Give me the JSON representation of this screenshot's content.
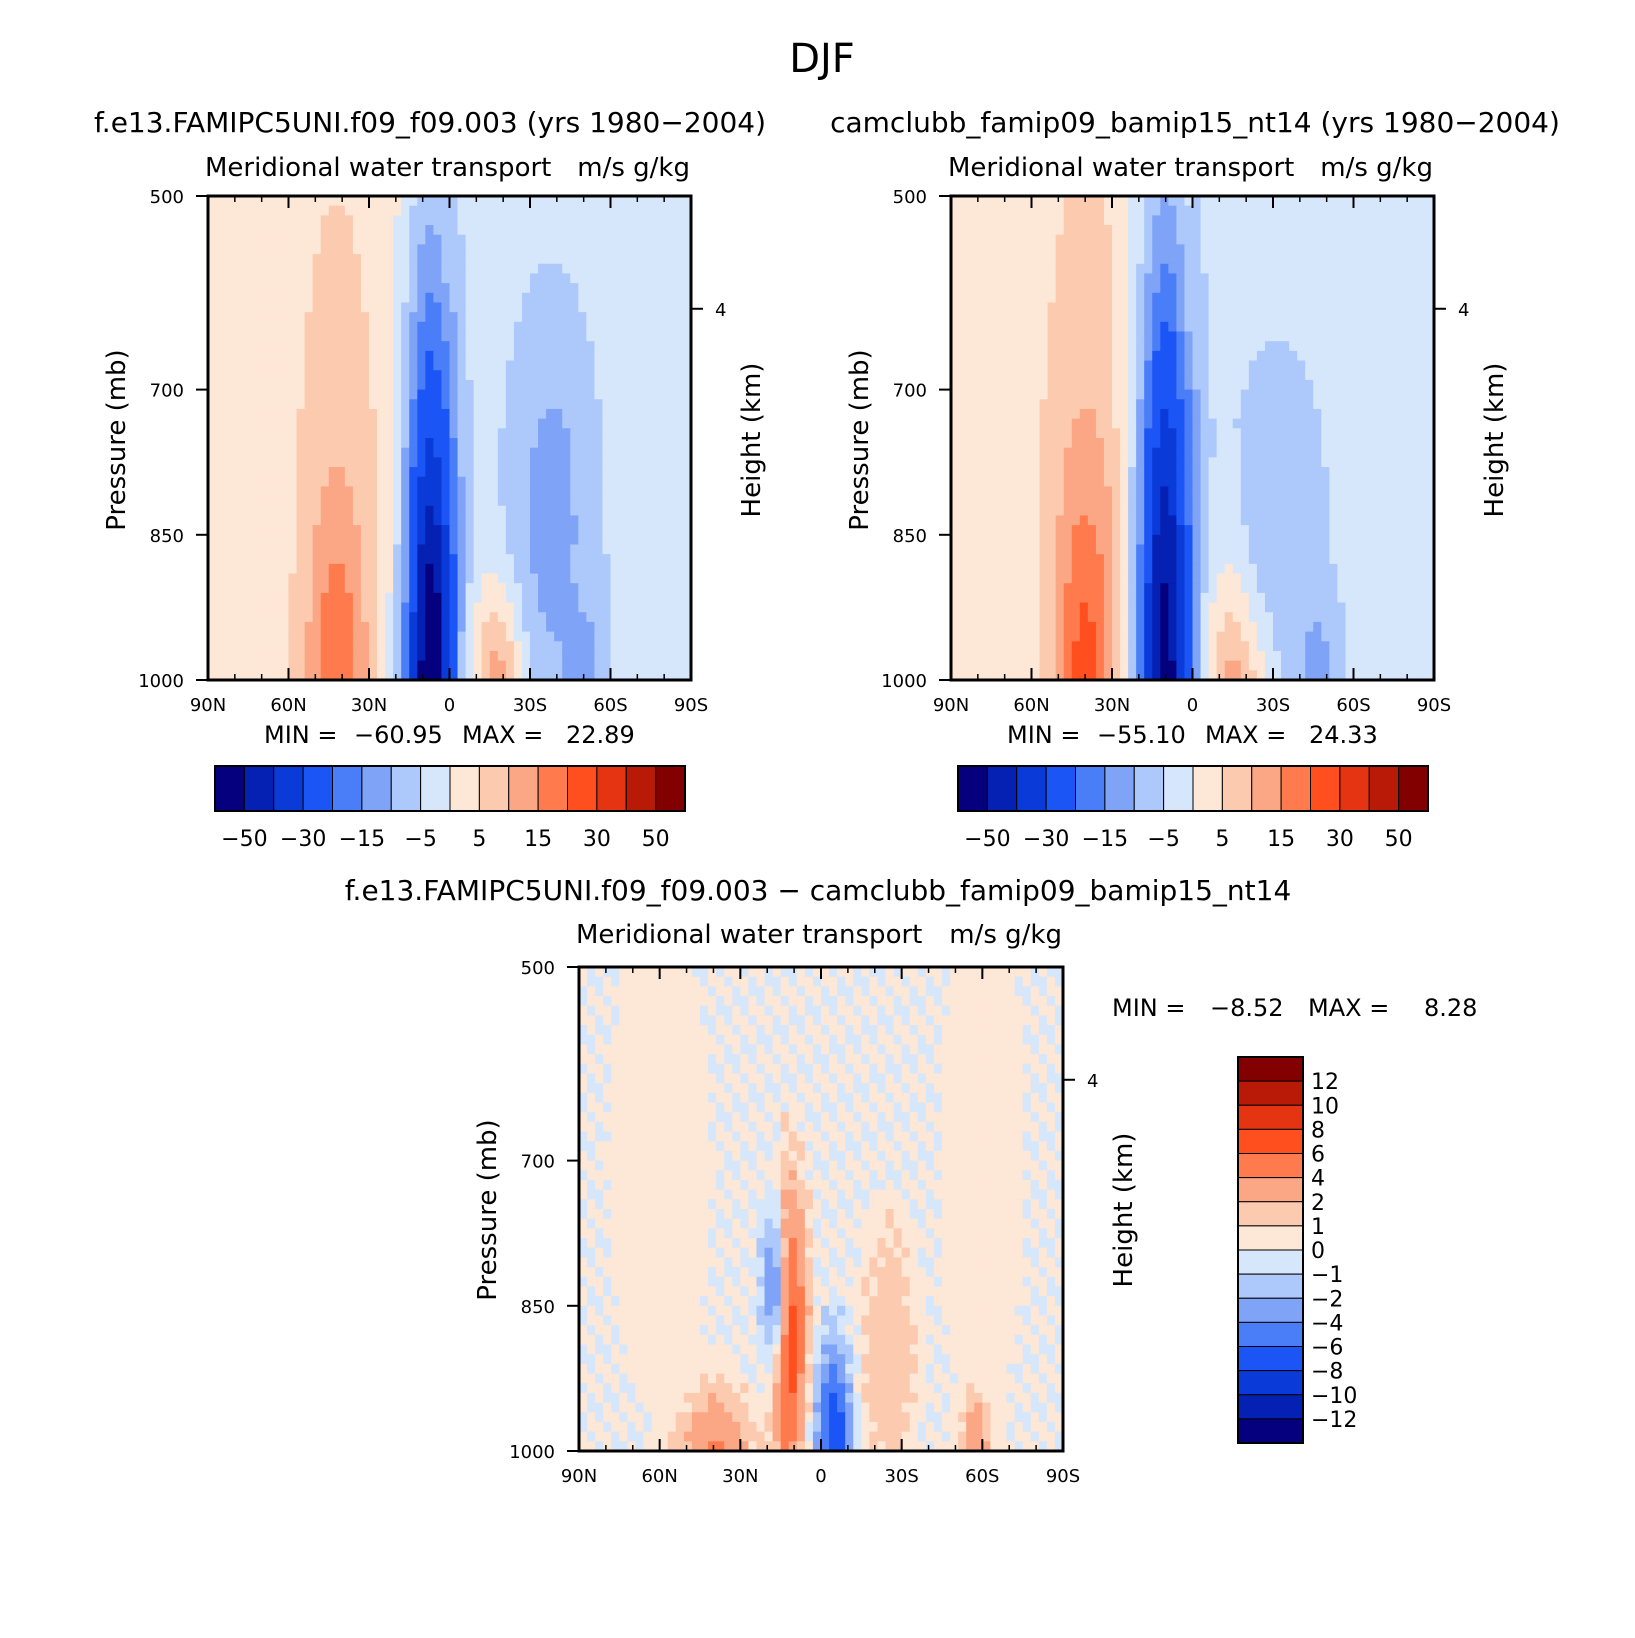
{
  "page": {
    "title": "DJF"
  },
  "colors": {
    "abs_levels": [
      -50,
      -40,
      -30,
      -20,
      -15,
      -10,
      -5,
      0,
      5,
      10,
      15,
      20,
      30,
      40,
      50
    ],
    "abs_palette": [
      "#04007e",
      "#0521b3",
      "#0a3ad8",
      "#1c55f5",
      "#4a7df8",
      "#7fa3f7",
      "#adc8fa",
      "#d6e7fb",
      "#fde7d6",
      "#fccaaf",
      "#fba785",
      "#ff7b4d",
      "#ff4f1f",
      "#e53411",
      "#b91a08",
      "#830000"
    ],
    "diff_levels": [
      -12,
      -10,
      -8,
      -6,
      -4,
      -2,
      -1,
      0,
      1,
      2,
      4,
      6,
      8,
      10,
      12
    ],
    "diff_palette": [
      "#04007e",
      "#0521b3",
      "#0a3ad8",
      "#1c55f5",
      "#4a7df8",
      "#7fa3f7",
      "#adc8fa",
      "#d6e7fb",
      "#fde7d6",
      "#fccaaf",
      "#fba785",
      "#ff7b4d",
      "#ff4f1f",
      "#e53411",
      "#b91a08",
      "#830000"
    ]
  },
  "chart_data": [
    {
      "type": "heatmap",
      "id": "panel-a",
      "title": "f.e13.FAMIPC5UNI.f09_f09.003 (yrs 1980−2004)",
      "subtitle_left": "Meridional water transport",
      "subtitle_right": "m/s g/kg",
      "xlabel": "",
      "ylabel": "Pressure (mb)",
      "ylabel_right": "Height (km)",
      "x_ticks": [
        "90N",
        "60N",
        "30N",
        "0",
        "30S",
        "60S",
        "90S"
      ],
      "x_range": [
        90,
        -90
      ],
      "y_ticks": [
        500,
        700,
        850,
        1000
      ],
      "y_range": [
        500,
        1000
      ],
      "y_right_ticks": [
        "4"
      ],
      "stats": {
        "min_label": "MIN =",
        "min": "−60.95",
        "max_label": "MAX =",
        "max": "22.89"
      },
      "colorbar_labels": [
        "−50",
        "−30",
        "−15",
        "−5",
        "5",
        "15",
        "30",
        "50"
      ],
      "features": [
        {
          "lat": 42,
          "p": 950,
          "wlat": 16,
          "wp": 450,
          "value": 10
        },
        {
          "lat": 42,
          "p": 1000,
          "wlat": 9,
          "wp": 150,
          "value": 20
        },
        {
          "lat": 7,
          "p": 1000,
          "wlat": 10,
          "wp": 420,
          "value": -40
        },
        {
          "lat": 7,
          "p": 1000,
          "wlat": 5,
          "wp": 160,
          "value": -60
        },
        {
          "lat": -20,
          "p": 1000,
          "wlat": 10,
          "wp": 100,
          "value": 18
        },
        {
          "lat": -38,
          "p": 830,
          "wlat": 18,
          "wp": 240,
          "value": -12
        },
        {
          "lat": -50,
          "p": 990,
          "wlat": 9,
          "wp": 80,
          "value": -12
        }
      ]
    },
    {
      "type": "heatmap",
      "id": "panel-b",
      "title": "camclubb_famip09_bamip15_nt14 (yrs 1980−2004)",
      "subtitle_left": "Meridional water transport",
      "subtitle_right": "m/s g/kg",
      "xlabel": "",
      "ylabel": "Pressure (mb)",
      "ylabel_right": "Height (km)",
      "x_ticks": [
        "90N",
        "60N",
        "30N",
        "0",
        "30S",
        "60S",
        "90S"
      ],
      "x_range": [
        90,
        -90
      ],
      "y_ticks": [
        500,
        700,
        850,
        1000
      ],
      "y_range": [
        500,
        1000
      ],
      "y_right_ticks": [
        "4"
      ],
      "stats": {
        "min_label": "MIN =",
        "min": "−55.10",
        "max_label": "MAX =",
        "max": "24.33"
      },
      "colorbar_labels": [
        "−50",
        "−30",
        "−15",
        "−5",
        "5",
        "15",
        "30",
        "50"
      ],
      "features": [
        {
          "lat": 40,
          "p": 950,
          "wlat": 17,
          "wp": 460,
          "value": 11
        },
        {
          "lat": 40,
          "p": 1000,
          "wlat": 9,
          "wp": 180,
          "value": 22
        },
        {
          "lat": 10,
          "p": 1000,
          "wlat": 11,
          "wp": 450,
          "value": -40
        },
        {
          "lat": 10,
          "p": 1000,
          "wlat": 5,
          "wp": 200,
          "value": -55
        },
        {
          "lat": -18,
          "p": 1000,
          "wlat": 11,
          "wp": 130,
          "value": 22
        },
        {
          "lat": -32,
          "p": 830,
          "wlat": 22,
          "wp": 220,
          "value": -8
        },
        {
          "lat": -46,
          "p": 990,
          "wlat": 9,
          "wp": 80,
          "value": -12
        }
      ]
    },
    {
      "type": "heatmap",
      "id": "panel-c",
      "title": "f.e13.FAMIPC5UNI.f09_f09.003 − camclubb_famip09_bamip15_nt14",
      "subtitle_left": "Meridional water transport",
      "subtitle_right": "m/s g/kg",
      "xlabel": "",
      "ylabel": "Pressure (mb)",
      "ylabel_right": "Height (km)",
      "x_ticks": [
        "90N",
        "60N",
        "30N",
        "0",
        "30S",
        "60S",
        "90S"
      ],
      "x_range": [
        90,
        -90
      ],
      "y_ticks": [
        500,
        700,
        850,
        1000
      ],
      "y_range": [
        500,
        1000
      ],
      "y_right_ticks": [
        "4"
      ],
      "stats": {
        "min_label": "MIN =",
        "min": "−8.52",
        "max_label": "MAX =",
        "max": "8.28"
      },
      "colorbar_labels": [
        "12",
        "10",
        "8",
        "6",
        "4",
        "2",
        "1",
        "0",
        "−1",
        "−2",
        "−4",
        "−6",
        "−8",
        "−10",
        "−12"
      ],
      "features": [
        {
          "lat": 12,
          "p": 880,
          "wlat": 6,
          "wp": 140,
          "value": 8
        },
        {
          "lat": 18,
          "p": 830,
          "wlat": 5,
          "wp": 90,
          "value": -3
        },
        {
          "lat": -5,
          "p": 990,
          "wlat": 6,
          "wp": 90,
          "value": -8
        },
        {
          "lat": 40,
          "p": 1000,
          "wlat": 12,
          "wp": 60,
          "value": 5
        },
        {
          "lat": -25,
          "p": 900,
          "wlat": 10,
          "wp": 140,
          "value": 2
        },
        {
          "lat": 60,
          "p": 700,
          "wlat": 22,
          "wp": 300,
          "value": 0.6
        },
        {
          "lat": -60,
          "p": 700,
          "wlat": 18,
          "wp": 320,
          "value": 0.6
        },
        {
          "lat": -58,
          "p": 990,
          "wlat": 5,
          "wp": 50,
          "value": 3
        }
      ]
    }
  ]
}
